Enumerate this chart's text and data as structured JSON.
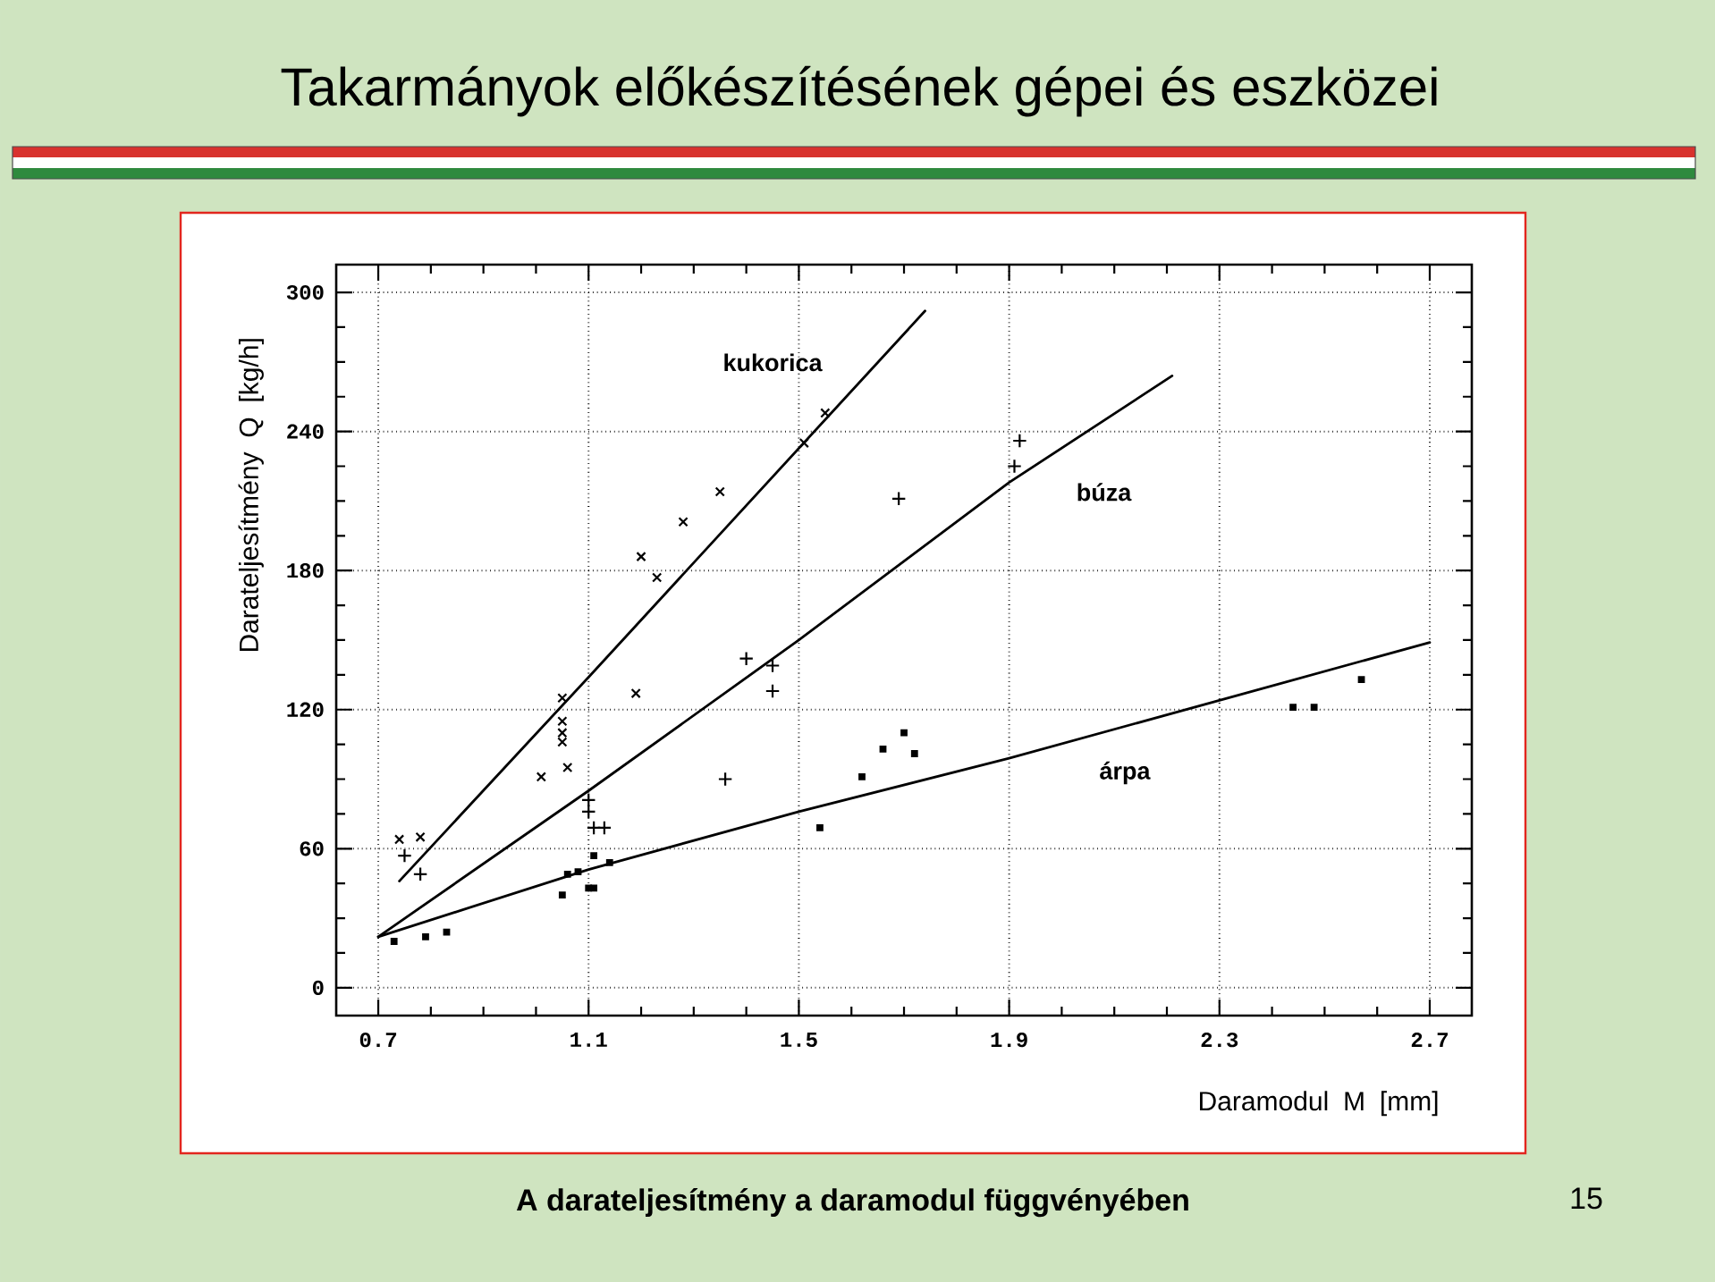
{
  "chart_data": {
    "type": "scatter",
    "title": "Takarmányok előkészítésének gépei és eszközei",
    "xlabel": "Daramodul M  [mm]",
    "ylabel": "Darateljesítmény  Q  [kg/h]",
    "xlim": [
      0.62,
      2.78
    ],
    "ylim": [
      -12,
      312
    ],
    "xticks": [
      0.7,
      1.1,
      1.5,
      1.9,
      2.3,
      2.7
    ],
    "yticks": [
      0,
      60,
      120,
      180,
      240,
      300
    ],
    "grid": true,
    "series": [
      {
        "marker": "cross",
        "color": "#000000",
        "x": [
          0.74,
          0.78,
          1.01,
          1.05,
          1.05,
          1.05,
          1.05,
          1.06,
          1.19,
          1.2,
          1.23,
          1.28,
          1.35,
          1.51,
          1.55
        ],
        "values": [
          64,
          65,
          91,
          125,
          115,
          110,
          106,
          95,
          127,
          186,
          177,
          201,
          214,
          235,
          248
        ]
      },
      {
        "marker": "plus",
        "color": "#000000",
        "x": [
          0.75,
          0.78,
          1.1,
          1.1,
          1.11,
          1.13,
          1.36,
          1.4,
          1.45,
          1.45,
          1.69,
          1.91,
          1.92
        ],
        "values": [
          57,
          49,
          81,
          76,
          69,
          69,
          90,
          142,
          139,
          128,
          211,
          225,
          236
        ]
      },
      {
        "marker": "square",
        "color": "#000000",
        "x": [
          0.73,
          0.79,
          0.83,
          1.05,
          1.06,
          1.08,
          1.1,
          1.11,
          1.11,
          1.14,
          1.54,
          1.62,
          1.66,
          1.7,
          1.72,
          2.44,
          2.48,
          2.57
        ],
        "values": [
          20,
          22,
          24,
          40,
          49,
          50,
          43,
          43,
          57,
          54,
          69,
          91,
          103,
          110,
          101,
          121,
          121,
          133
        ]
      },
      {
        "type": "line",
        "name": "kukorica",
        "marker": "none",
        "line_style": "solid",
        "color": "#000000",
        "x": [
          0.74,
          1.1,
          1.74
        ],
        "values": [
          46,
          134,
          292
        ]
      },
      {
        "type": "line",
        "name": "búza",
        "marker": "none",
        "line_style": "solid",
        "color": "#000000",
        "x": [
          0.7,
          1.1,
          1.5,
          1.9,
          2.21
        ],
        "values": [
          22,
          85,
          150,
          218,
          264
        ]
      },
      {
        "type": "line",
        "name": "árpa",
        "marker": "none",
        "line_style": "solid",
        "color": "#000000",
        "x": [
          0.7,
          1.1,
          1.5,
          1.9,
          2.3,
          2.7
        ],
        "values": [
          22,
          51,
          76,
          99,
          124,
          149
        ]
      }
    ],
    "annotations": [
      "A darateljesítmény a daramodul függvényében",
      "15"
    ]
  }
}
